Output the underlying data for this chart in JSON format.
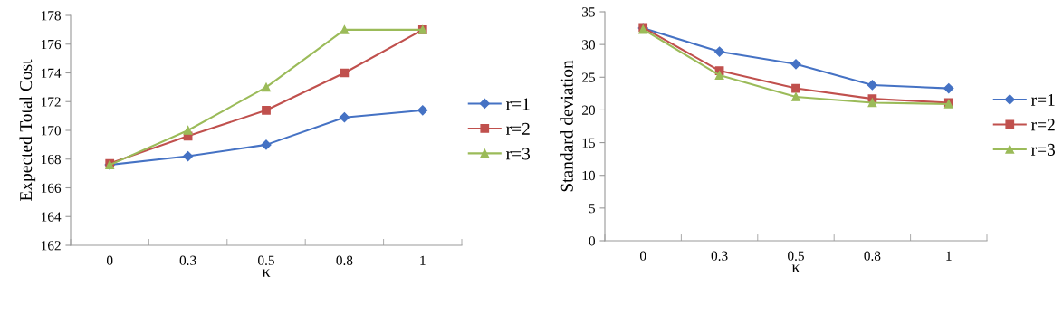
{
  "chart_data": [
    {
      "type": "line",
      "ylabel": "Expected Total Cost",
      "xlabel": "κ",
      "categories": [
        "0",
        "0.3",
        "0.5",
        "0.8",
        "1"
      ],
      "ylim": [
        162,
        178
      ],
      "yticks": [
        162,
        164,
        166,
        168,
        170,
        172,
        174,
        176,
        178
      ],
      "grid": false,
      "legend": "right",
      "series": [
        {
          "name": "r=1",
          "color": "#4572c4",
          "marker": "diamond",
          "values": [
            167.6,
            168.2,
            169.0,
            170.9,
            171.4
          ]
        },
        {
          "name": "r=2",
          "color": "#c0504d",
          "marker": "square",
          "values": [
            167.7,
            169.6,
            171.4,
            174.0,
            177.0
          ]
        },
        {
          "name": "r=3",
          "color": "#9bbb59",
          "marker": "triangle",
          "values": [
            167.6,
            170.0,
            173.0,
            177.0,
            177.0
          ]
        }
      ]
    },
    {
      "type": "line",
      "ylabel": "Standard deviation",
      "xlabel": "κ",
      "categories": [
        "0",
        "0.3",
        "0.5",
        "0.8",
        "1"
      ],
      "ylim": [
        0,
        35
      ],
      "yticks": [
        0,
        5,
        10,
        15,
        20,
        25,
        30,
        35
      ],
      "grid": false,
      "legend": "right",
      "series": [
        {
          "name": "r=1",
          "color": "#4572c4",
          "marker": "diamond",
          "values": [
            32.5,
            28.9,
            27.0,
            23.8,
            23.3
          ]
        },
        {
          "name": "r=2",
          "color": "#c0504d",
          "marker": "square",
          "values": [
            32.6,
            26.0,
            23.3,
            21.7,
            21.1
          ]
        },
        {
          "name": "r=3",
          "color": "#9bbb59",
          "marker": "triangle",
          "values": [
            32.3,
            25.3,
            22.0,
            21.1,
            20.9
          ]
        }
      ]
    }
  ]
}
